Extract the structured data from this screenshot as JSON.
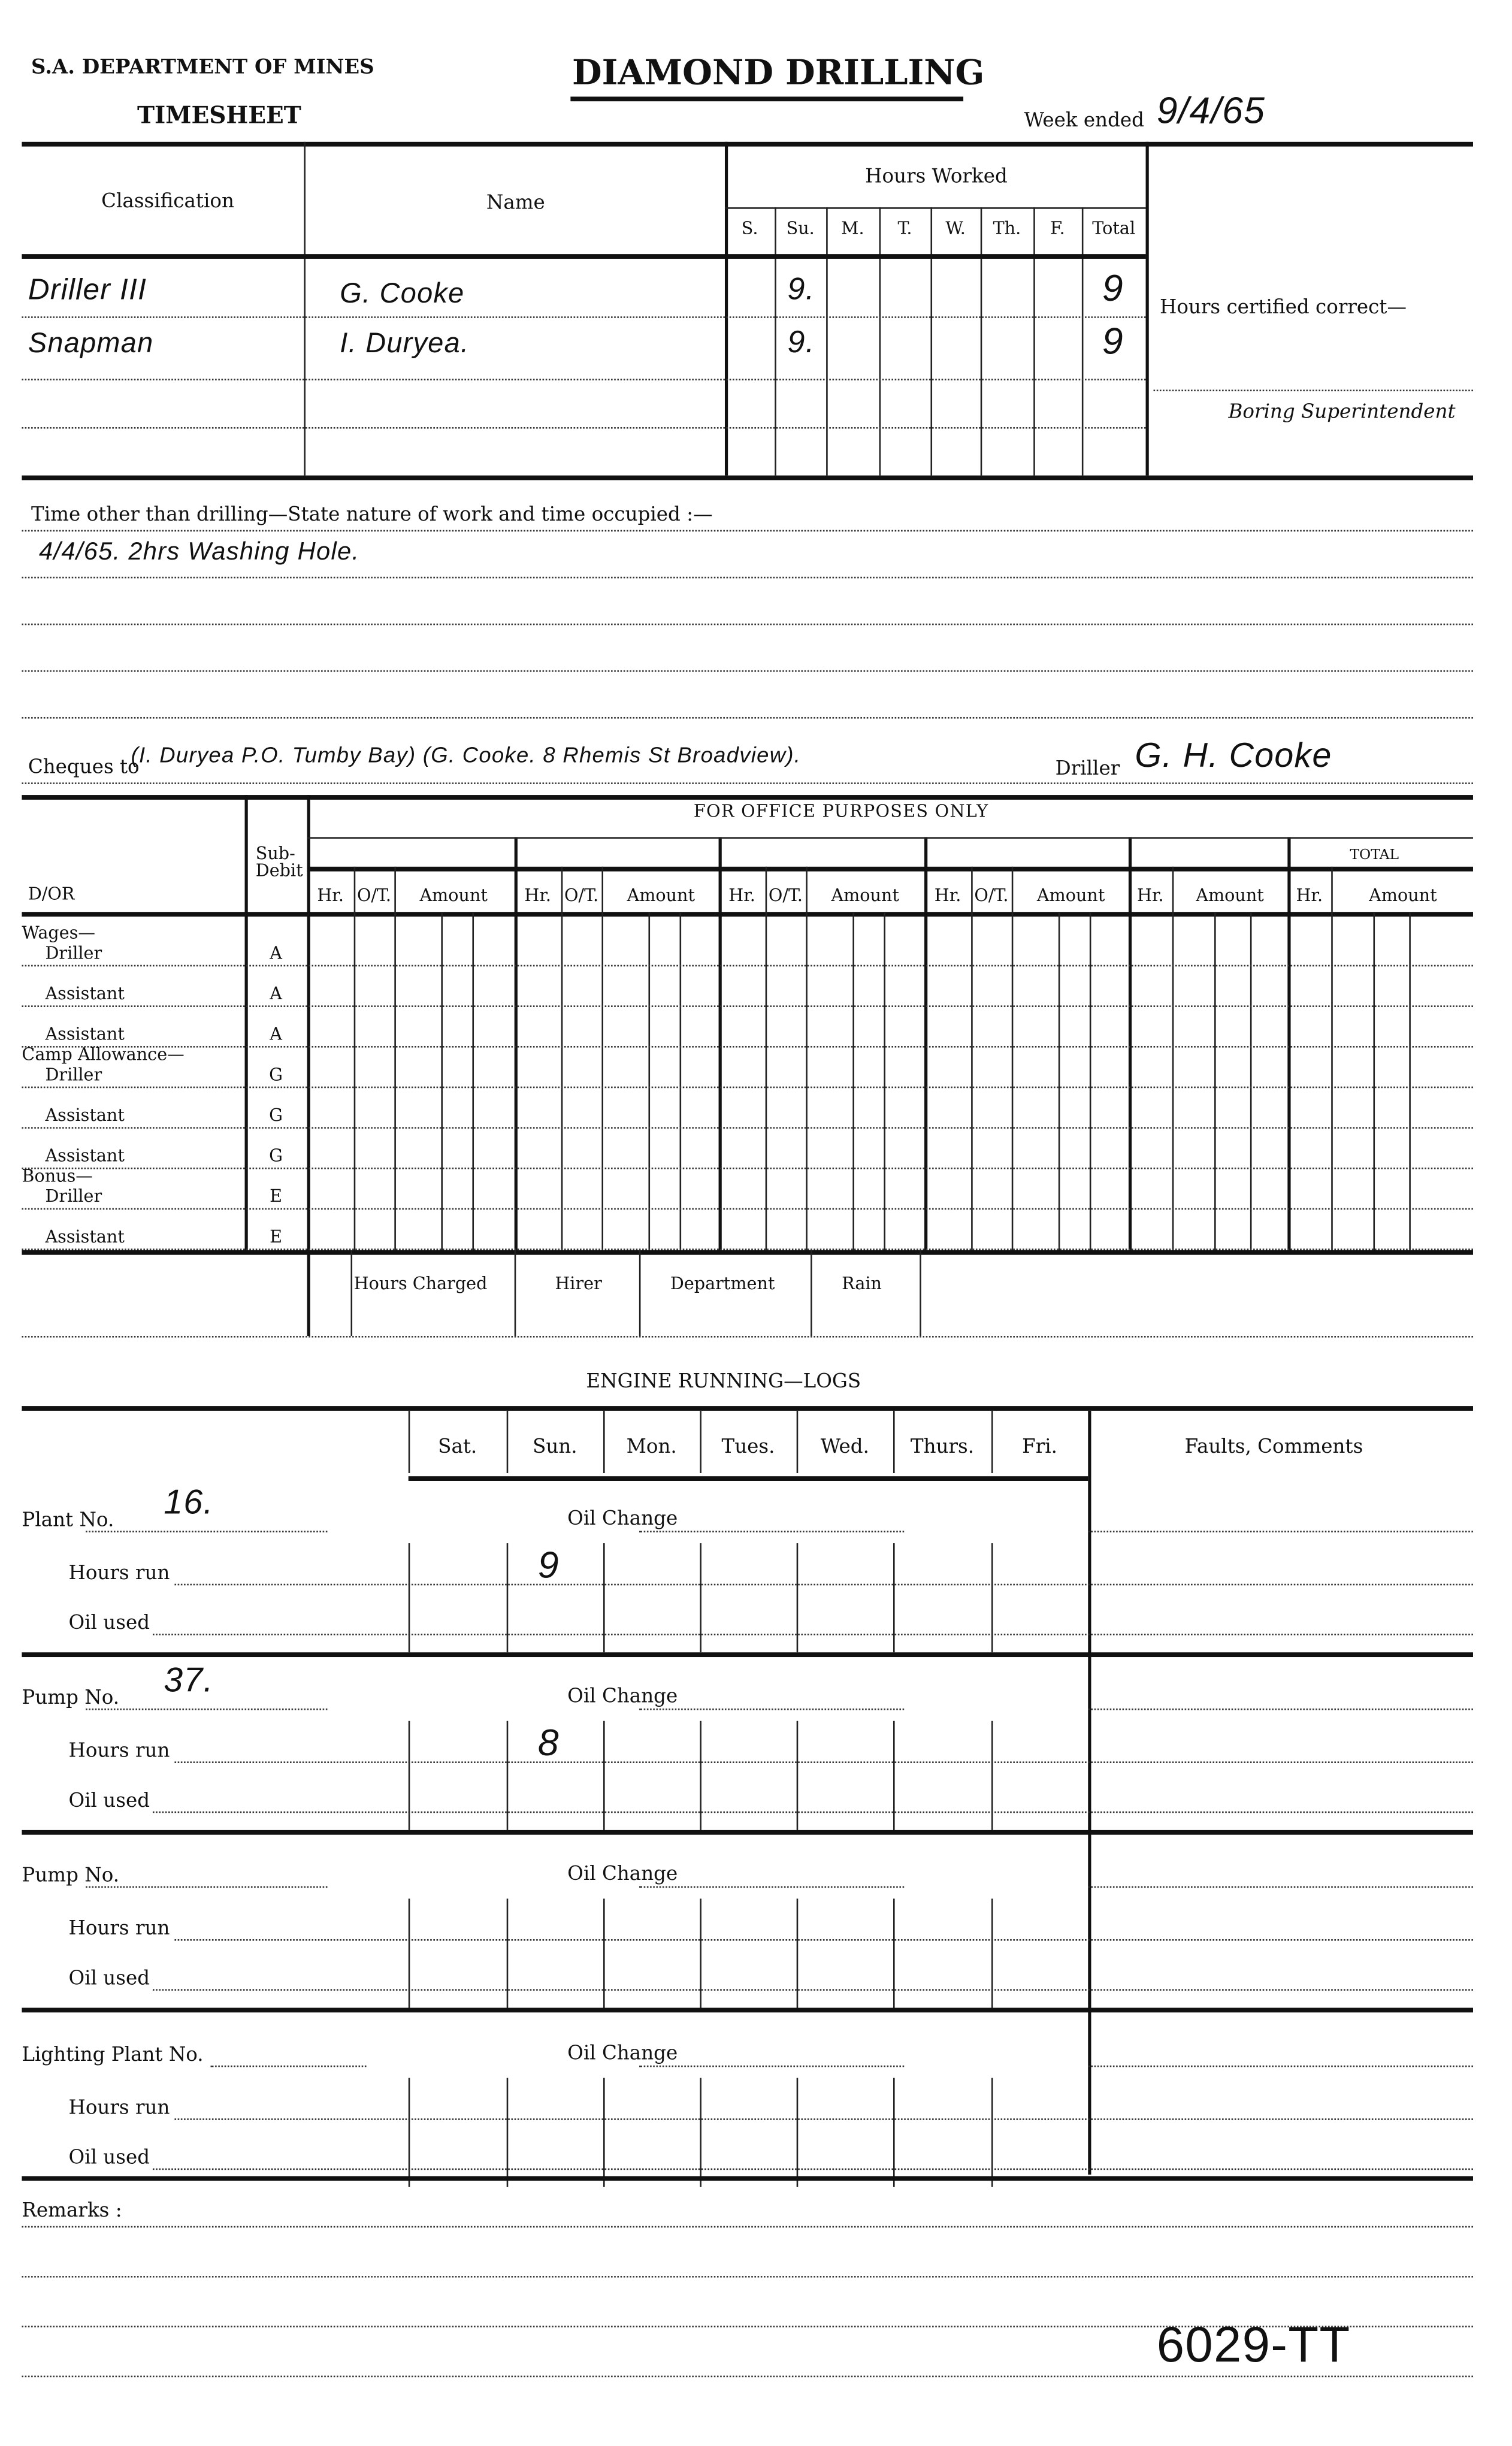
{
  "header": {
    "department": "S.A. DEPARTMENT OF MINES",
    "title": "DIAMOND DRILLING",
    "subtitle": "TIMESHEET",
    "week_ended_label": "Week ended",
    "week_ended_value": "9/4/65"
  },
  "hours_table": {
    "classification_label": "Classification",
    "name_label": "Name",
    "hours_worked_label": "Hours Worked",
    "days": [
      "S.",
      "Su.",
      "M.",
      "T.",
      "W.",
      "Th.",
      "F.",
      "Total"
    ],
    "rows": [
      {
        "classification": "Driller III",
        "name": "G. Cooke",
        "su": "9.",
        "total": "9"
      },
      {
        "classification": "Snapman",
        "name": "I. Duryea.",
        "su": "9.",
        "total": "9"
      }
    ],
    "certified_label": "Hours certified correct—",
    "superintendent_label": "Boring Superintendent"
  },
  "other_time": {
    "label": "Time other than drilling—State nature of work and time occupied :—",
    "entry": "4/4/65. 2hrs Washing Hole."
  },
  "cheques": {
    "label": "Cheques to",
    "value": "(I. Duryea P.O. Tumby Bay) (G. Cooke. 8 Rhemis St Broadview).",
    "driller_label": "Driller",
    "driller_signature": "G. H. Cooke"
  },
  "office": {
    "title": "FOR OFFICE PURPOSES ONLY",
    "dor_label": "D/OR",
    "sub_debit_label": "Sub-Debit",
    "total_label": "TOTAL",
    "hr": "Hr.",
    "ot": "O/T.",
    "amount": "Amount",
    "rows": [
      {
        "group": "Wages—",
        "label": "Driller",
        "code": "A"
      },
      {
        "group": "",
        "label": "Assistant",
        "code": "A"
      },
      {
        "group": "",
        "label": "Assistant",
        "code": "A"
      },
      {
        "group": "Camp Allowance—",
        "label": "Driller",
        "code": "G"
      },
      {
        "group": "",
        "label": "Assistant",
        "code": "G"
      },
      {
        "group": "",
        "label": "Assistant",
        "code": "G"
      },
      {
        "group": "Bonus—",
        "label": "Driller",
        "code": "E"
      },
      {
        "group": "",
        "label": "Assistant",
        "code": "E"
      }
    ],
    "charges": [
      "Hours Charged",
      "Hirer",
      "Department",
      "Rain"
    ]
  },
  "engine": {
    "title": "ENGINE RUNNING—LOGS",
    "days": [
      "Sat.",
      "Sun.",
      "Mon.",
      "Tues.",
      "Wed.",
      "Thurs.",
      "Fri."
    ],
    "faults_label": "Faults, Comments",
    "oil_change_label": "Oil Change",
    "hours_run_label": "Hours run",
    "oil_used_label": "Oil used",
    "sections": [
      {
        "label": "Plant No.",
        "number": "16.",
        "sun_hours": "9"
      },
      {
        "label": "Pump No.",
        "number": "37.",
        "sun_hours": "8"
      },
      {
        "label": "Pump No.",
        "number": "",
        "sun_hours": ""
      },
      {
        "label": "Lighting Plant No.",
        "number": "",
        "sun_hours": ""
      }
    ]
  },
  "remarks": {
    "label": "Remarks :"
  },
  "form_number": "6029-TT"
}
